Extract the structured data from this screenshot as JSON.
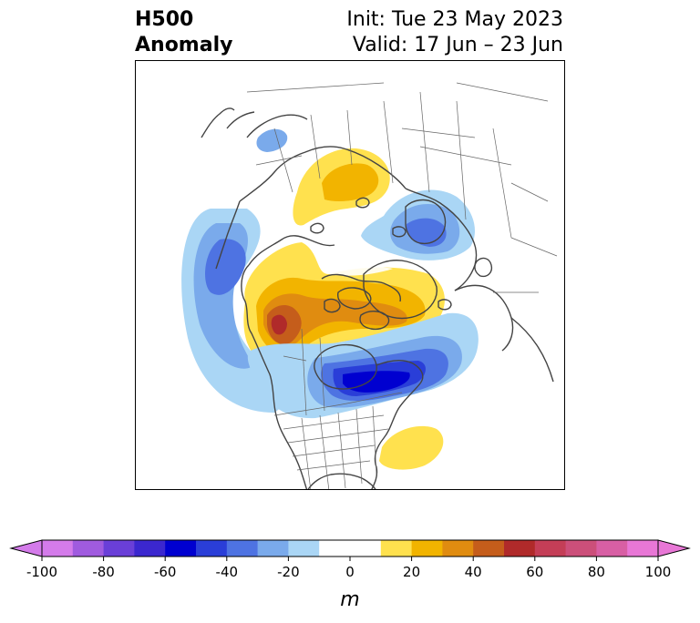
{
  "title": {
    "left_line1": "H500",
    "left_line2": "Anomaly",
    "init": "Init: Tue 23 May 2023",
    "valid": "Valid: 17 Jun – 23 Jun"
  },
  "map": {
    "projection": "north-polar-stereographic",
    "field": "500 hPa geopotential height anomaly",
    "features": [
      {
        "name": "positive-anomaly-western-canada",
        "sign": "+",
        "peak_m": 70
      },
      {
        "name": "positive-anomaly-central-arctic-canada",
        "sign": "+",
        "peak_m": 40
      },
      {
        "name": "positive-anomaly-siberia",
        "sign": "+",
        "peak_m": 20
      },
      {
        "name": "positive-anomaly-southeast-us",
        "sign": "+",
        "peak_m": 20
      },
      {
        "name": "negative-anomaly-eastern-canada",
        "sign": "-",
        "peak_m": -60
      },
      {
        "name": "negative-anomaly-north-pacific",
        "sign": "-",
        "peak_m": -40
      },
      {
        "name": "negative-anomaly-scandinavia",
        "sign": "-",
        "peak_m": -40
      },
      {
        "name": "negative-anomaly-east-siberia",
        "sign": "-",
        "peak_m": -20
      }
    ]
  },
  "colorbar": {
    "unit": "m",
    "min": -100,
    "max": 100,
    "ticks": [
      "-100",
      "-80",
      "-60",
      "-40",
      "-20",
      "0",
      "20",
      "40",
      "60",
      "80",
      "100"
    ],
    "extend": "both",
    "colors": [
      "#d47bea",
      "#a05bdf",
      "#6a3fd8",
      "#3b27cf",
      "#0000d0",
      "#2a3ed8",
      "#4e73e2",
      "#7aaaeb",
      "#aad6f5",
      "#ffffff",
      "#ffffff",
      "#ffe14e",
      "#f2b400",
      "#e08c10",
      "#c55d1b",
      "#b02a2a",
      "#c43e57",
      "#cc4f7a",
      "#d85fa4",
      "#e877d6"
    ]
  }
}
